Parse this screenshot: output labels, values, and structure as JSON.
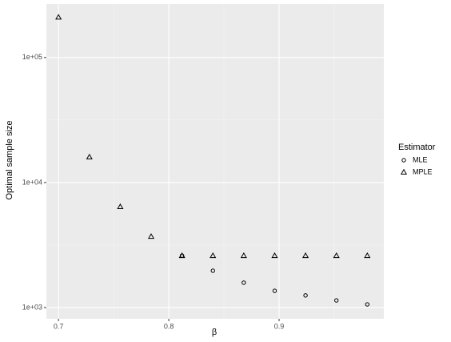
{
  "chart_data": {
    "type": "scatter",
    "x_label": "β",
    "y_label": "Optimal sample size",
    "legend_title": "Estimator",
    "legend_position": "right",
    "log_y": true,
    "grid": true,
    "x": [
      0.7,
      0.728,
      0.756,
      0.784,
      0.812,
      0.84,
      0.868,
      0.896,
      0.924,
      0.952,
      0.98
    ],
    "series": [
      {
        "name": "MLE",
        "marker": "circle",
        "color": "#000000",
        "values": [
          null,
          null,
          null,
          null,
          2600,
          1970,
          1580,
          1360,
          1250,
          1140,
          1060
        ]
      },
      {
        "name": "MPLE",
        "marker": "triangle",
        "color": "#000000",
        "values": [
          210000,
          16000,
          6400,
          3700,
          2600,
          2600,
          2600,
          2600,
          2600,
          2600,
          2600
        ]
      }
    ],
    "xlim": [
      0.689,
      0.995
    ],
    "xticks": [
      0.7,
      0.8,
      0.9
    ],
    "ylim": [
      813,
      268000
    ],
    "yticks": [
      {
        "value": 1000,
        "label": "1e+03"
      },
      {
        "value": 10000,
        "label": "1e+04"
      },
      {
        "value": 100000,
        "label": "1e+05"
      }
    ]
  }
}
